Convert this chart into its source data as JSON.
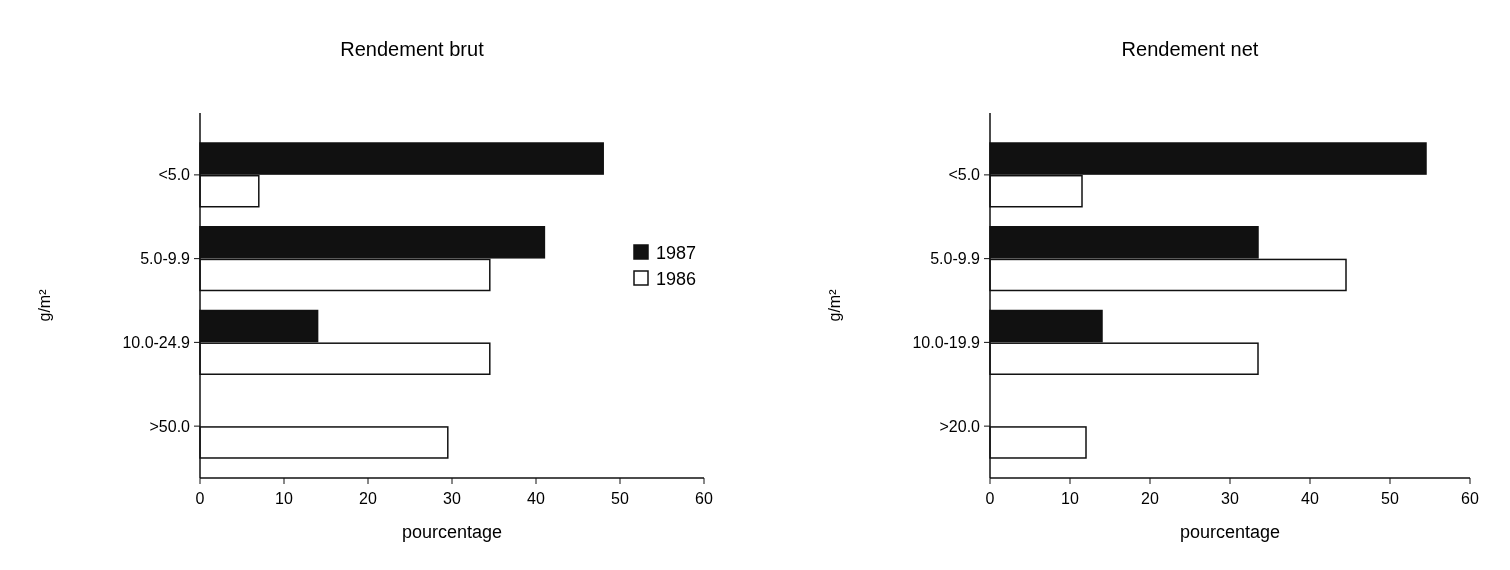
{
  "chart_data": [
    {
      "type": "bar",
      "orientation": "horizontal",
      "title": "Rendement brut",
      "xlabel": "pourcentage",
      "ylabel": "g/m²",
      "categories": [
        "<5.0",
        "5.0-9.9",
        "10.0-24.9",
        ">50.0"
      ],
      "series": [
        {
          "name": "1987",
          "color": "#111111",
          "values": [
            48,
            41,
            14,
            null
          ]
        },
        {
          "name": "1986",
          "color": "#ffffff",
          "values": [
            7,
            34.5,
            34.5,
            29.5
          ]
        }
      ],
      "xlim": [
        0,
        60
      ],
      "xticks": [
        0,
        10,
        20,
        30,
        40,
        50,
        60
      ],
      "legend": "right"
    },
    {
      "type": "bar",
      "orientation": "horizontal",
      "title": "Rendement net",
      "xlabel": "pourcentage",
      "ylabel": "g/m²",
      "categories": [
        "<5.0",
        "5.0-9.9",
        "10.0-19.9",
        ">20.0"
      ],
      "series": [
        {
          "color": "#111111",
          "values": [
            54.5,
            33.5,
            14,
            null
          ]
        },
        {
          "color": "#ffffff",
          "values": [
            11.5,
            44.5,
            33.5,
            12
          ]
        }
      ],
      "xlim": [
        0,
        60
      ],
      "xticks": [
        0,
        10,
        20,
        30,
        40,
        50,
        60
      ]
    }
  ]
}
